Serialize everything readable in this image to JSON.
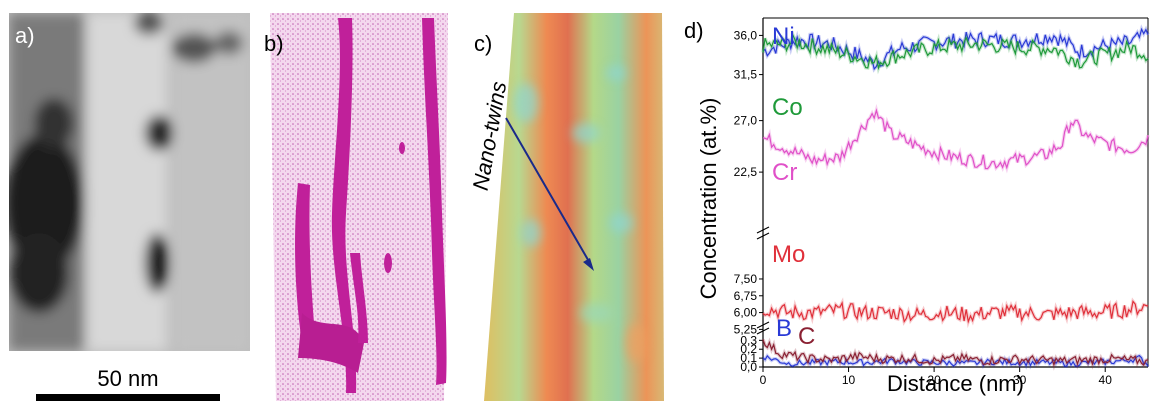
{
  "panels": {
    "a": {
      "label": "a)",
      "scale_bar_text": "50 nm"
    },
    "b": {
      "label": "b)"
    },
    "c": {
      "label": "c)",
      "annotation": "Nano-twins"
    },
    "d": {
      "label": "d)"
    }
  },
  "chart_data": {
    "type": "line",
    "xlabel": "Distance (nm)",
    "ylabel": "Concentration (at.%)",
    "xlim": [
      0,
      45
    ],
    "xticks": [
      "0",
      "10",
      "20",
      "30",
      "40"
    ],
    "broken_y_axis": true,
    "y_segments": [
      {
        "range": [
          29.5,
          38
        ],
        "ticks": [
          "31,5",
          "36,0"
        ]
      },
      {
        "range": [
          20.5,
          29.5
        ],
        "ticks": [
          "22,5",
          "27,0"
        ]
      },
      {
        "range": [
          5.0,
          7.9
        ],
        "ticks": [
          "5,25",
          "6,00",
          "6,75",
          "7,50"
        ]
      },
      {
        "range": [
          0.0,
          0.36
        ],
        "ticks": [
          "0,0",
          "0,1",
          "0,2",
          "0,3"
        ]
      }
    ],
    "series": [
      {
        "name": "Ni",
        "color": "#2a3ad6",
        "values": [
          [
            0,
            34.2
          ],
          [
            4,
            35.5
          ],
          [
            8,
            35.0
          ],
          [
            11,
            33.8
          ],
          [
            13,
            32.8
          ],
          [
            16,
            34.5
          ],
          [
            20,
            35.2
          ],
          [
            25,
            35.6
          ],
          [
            30,
            35.4
          ],
          [
            34,
            36.0
          ],
          [
            37,
            34.2
          ],
          [
            40,
            34.8
          ],
          [
            43,
            35.2
          ],
          [
            45,
            36.2
          ]
        ]
      },
      {
        "name": "Co",
        "color": "#1f9a3a",
        "values": [
          [
            0,
            34.8
          ],
          [
            4,
            35.2
          ],
          [
            8,
            34.3
          ],
          [
            11,
            33.5
          ],
          [
            13,
            32.8
          ],
          [
            16,
            33.8
          ],
          [
            20,
            34.6
          ],
          [
            25,
            35.0
          ],
          [
            30,
            34.6
          ],
          [
            34,
            34.5
          ],
          [
            37,
            33.0
          ],
          [
            40,
            33.8
          ],
          [
            43,
            34.6
          ],
          [
            45,
            33.8
          ]
        ]
      },
      {
        "name": "Cr",
        "color": "#e050c8",
        "values": [
          [
            0,
            25.5
          ],
          [
            3,
            24.5
          ],
          [
            6,
            23.5
          ],
          [
            9,
            23.8
          ],
          [
            11,
            25.8
          ],
          [
            13,
            27.8
          ],
          [
            15,
            25.8
          ],
          [
            18,
            24.8
          ],
          [
            21,
            24.0
          ],
          [
            24,
            23.6
          ],
          [
            27,
            23.3
          ],
          [
            30,
            23.6
          ],
          [
            33,
            24.0
          ],
          [
            35,
            25.0
          ],
          [
            36,
            27.0
          ],
          [
            38,
            25.5
          ],
          [
            41,
            24.8
          ],
          [
            43,
            24.5
          ],
          [
            45,
            25.5
          ]
        ]
      },
      {
        "name": "Mo",
        "color": "#e0303a",
        "values": [
          [
            0,
            6.2
          ],
          [
            3,
            6.0
          ],
          [
            6,
            6.0
          ],
          [
            9,
            6.1
          ],
          [
            12,
            6.0
          ],
          [
            15,
            6.0
          ],
          [
            18,
            5.9
          ],
          [
            21,
            6.0
          ],
          [
            24,
            5.9
          ],
          [
            27,
            6.0
          ],
          [
            30,
            6.0
          ],
          [
            33,
            5.9
          ],
          [
            36,
            6.0
          ],
          [
            39,
            6.0
          ],
          [
            42,
            6.1
          ],
          [
            45,
            6.3
          ]
        ]
      },
      {
        "name": "B",
        "color": "#2a3ad6",
        "values": [
          [
            0,
            0.12
          ],
          [
            3,
            0.04
          ],
          [
            6,
            0.05
          ],
          [
            9,
            0.06
          ],
          [
            12,
            0.05
          ],
          [
            15,
            0.07
          ],
          [
            18,
            0.05
          ],
          [
            21,
            0.05
          ],
          [
            24,
            0.04
          ],
          [
            27,
            0.06
          ],
          [
            30,
            0.05
          ],
          [
            33,
            0.05
          ],
          [
            36,
            0.04
          ],
          [
            39,
            0.05
          ],
          [
            42,
            0.07
          ],
          [
            44,
            0.1
          ],
          [
            45,
            0.03
          ]
        ]
      },
      {
        "name": "C",
        "color": "#8a2032",
        "values": [
          [
            0,
            0.3
          ],
          [
            2,
            0.15
          ],
          [
            5,
            0.1
          ],
          [
            8,
            0.08
          ],
          [
            11,
            0.12
          ],
          [
            14,
            0.09
          ],
          [
            17,
            0.1
          ],
          [
            20,
            0.07
          ],
          [
            23,
            0.1
          ],
          [
            26,
            0.07
          ],
          [
            29,
            0.09
          ],
          [
            32,
            0.08
          ],
          [
            35,
            0.07
          ],
          [
            38,
            0.08
          ],
          [
            41,
            0.09
          ],
          [
            44,
            0.07
          ],
          [
            45,
            0.05
          ]
        ]
      }
    ]
  }
}
